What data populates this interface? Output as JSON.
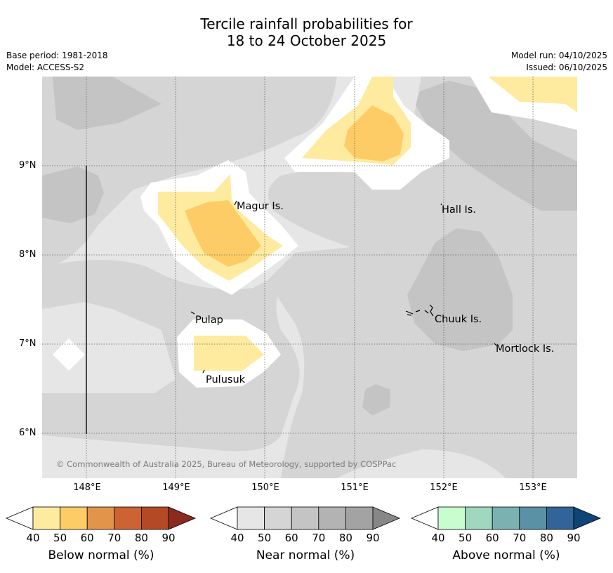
{
  "map": {
    "title_line1": "Tercile rainfall probabilities for",
    "title_line2": "18 to 24 October 2025",
    "base_period": "Base period: 1981-2018",
    "model": "Model: ACCESS-S2",
    "model_run": "Model run: 04/10/2025",
    "issued": "Issued: 06/10/2025",
    "copyright": "© Commonwealth of Australia 2025, Bureau of Meteorology, supported by COSPPac",
    "lat_labels": [
      "9°N",
      "8°N",
      "7°N",
      "6°N"
    ],
    "lon_labels": [
      "148°E",
      "149°E",
      "150°E",
      "151°E",
      "152°E",
      "153°E"
    ],
    "places": [
      {
        "name": "Magur Is."
      },
      {
        "name": "Hall Is."
      },
      {
        "name": "Pulap"
      },
      {
        "name": "Chuuk Is."
      },
      {
        "name": "Mortlock Is."
      },
      {
        "name": "Pulusuk"
      }
    ]
  },
  "colorbars": [
    {
      "title": "Below normal (%)",
      "ticks": [
        "40",
        "50",
        "60",
        "70",
        "80",
        "90"
      ],
      "colors": [
        "#ffffff",
        "#feeb9f",
        "#fecc66",
        "#e2954a",
        "#cd6233",
        "#b34925",
        "#8c2a1e"
      ]
    },
    {
      "title": "Near normal (%)",
      "ticks": [
        "40",
        "50",
        "60",
        "70",
        "80",
        "90"
      ],
      "colors": [
        "#ffffff",
        "#e6e6e6",
        "#d5d5d5",
        "#c4c4c4",
        "#b3b3b3",
        "#a3a3a3",
        "#878787"
      ]
    },
    {
      "title": "Above normal (%)",
      "ticks": [
        "40",
        "50",
        "60",
        "70",
        "80",
        "90"
      ],
      "colors": [
        "#ffffff",
        "#c8fdcf",
        "#a0d8bf",
        "#7bb2b1",
        "#5b91a4",
        "#336499",
        "#0f4476"
      ]
    }
  ]
}
